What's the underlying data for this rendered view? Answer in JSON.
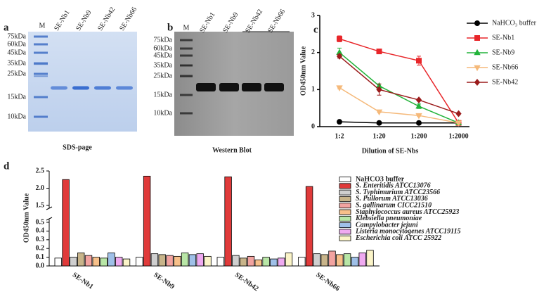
{
  "figure_a": {
    "panel_label": "a",
    "lanes": [
      "M",
      "SE-Nb1",
      "SE-Nb9",
      "SE-Nb42",
      "SE-Nb66"
    ],
    "markers": [
      "75kDa",
      "60kDa",
      "45kDa",
      "35kDa",
      "25kDa",
      "15kDa",
      "10kDa"
    ],
    "caption": "SDS-page"
  },
  "figure_b": {
    "panel_label": "b",
    "lanes": [
      "M",
      "SE-Nb1",
      "SE-Nb9",
      "SE-Nb42",
      "SE-Nb66"
    ],
    "markers": [
      "75kDa",
      "60kDa",
      "45kDa",
      "35kDa",
      "25kDa",
      "15kDa",
      "10kDa"
    ],
    "caption": "Western Blot"
  },
  "chart_data": [
    {
      "type": "line",
      "panel_label": "c",
      "x_label": "Dilution of SE-Nbs",
      "y_label": "OD450nm Value",
      "categories": [
        "1:2",
        "1:20",
        "1:200",
        "1:2000"
      ],
      "ylim": [
        0,
        3
      ],
      "yticks": [
        0,
        1,
        2,
        3
      ],
      "series": [
        {
          "name": "NaHCO₃ buffer",
          "color": "#000000",
          "marker": "circle",
          "values": [
            0.13,
            0.1,
            0.1,
            0.1
          ],
          "errors": [
            0.01,
            0.01,
            0.01,
            0.01
          ]
        },
        {
          "name": "SE-Nb1",
          "color": "#e8262a",
          "marker": "square",
          "values": [
            2.37,
            2.03,
            1.78,
            0.1
          ],
          "errors": [
            0.08,
            0.04,
            0.12,
            0.02
          ]
        },
        {
          "name": "SE-Nb9",
          "color": "#22b33a",
          "marker": "triangle",
          "values": [
            2.0,
            1.1,
            0.55,
            0.1
          ],
          "errors": [
            0.12,
            0.05,
            0.06,
            0.02
          ]
        },
        {
          "name": "SE-Nb66",
          "color": "#f5b97a",
          "marker": "triangle-down",
          "values": [
            1.05,
            0.4,
            0.3,
            0.1
          ],
          "errors": [
            0.03,
            0.02,
            0.02,
            0.02
          ]
        },
        {
          "name": "SE-Nb42",
          "color": "#9b1c1c",
          "marker": "diamond",
          "values": [
            1.9,
            1.0,
            0.72,
            0.35
          ],
          "errors": [
            0.05,
            0.15,
            0.03,
            0.02
          ]
        }
      ]
    },
    {
      "type": "bar",
      "panel_label": "d",
      "y_label": "OD450nm Value",
      "categories": [
        "SE-Nb1",
        "SE-Nb9",
        "SE-Nb42",
        "SE-Nb66"
      ],
      "ylim": [
        0,
        2.5
      ],
      "axis_break": [
        0.5,
        1.5
      ],
      "yticks": [
        {
          "value": 0,
          "label": "0.0"
        },
        0.1,
        0.2,
        0.3,
        0.4,
        0.5,
        1.5,
        {
          "value": 2,
          "label": "2.0"
        },
        2.5
      ],
      "series": [
        {
          "name": "NaHCO3 buffer",
          "color": "#ffffff",
          "values": [
            0.09,
            0.1,
            0.1,
            0.1
          ]
        },
        {
          "name": "S. Enteritidis ATCC13076",
          "color": "#e03a3a",
          "values": [
            2.25,
            2.35,
            2.33,
            2.05
          ]
        },
        {
          "name": "S. Typhimurium ATCC23566",
          "color": "#cfcfcf",
          "values": [
            0.1,
            0.14,
            0.12,
            0.14
          ]
        },
        {
          "name": "S. Pullorum ATCC13036",
          "color": "#c8b48a",
          "values": [
            0.15,
            0.13,
            0.09,
            0.13
          ]
        },
        {
          "name": "S. gallinarum CICC21510",
          "color": "#f2a3a0",
          "values": [
            0.12,
            0.12,
            0.11,
            0.17
          ]
        },
        {
          "name": "Staphylococcus aureus ATCC25923",
          "color": "#f7c08a",
          "values": [
            0.1,
            0.11,
            0.07,
            0.13
          ]
        },
        {
          "name": "Klebsiella pneumoniae",
          "color": "#b8e6a6",
          "values": [
            0.09,
            0.15,
            0.1,
            0.14
          ]
        },
        {
          "name": "Campylobacter jejuni",
          "color": "#9fc0e8",
          "values": [
            0.15,
            0.13,
            0.08,
            0.1
          ]
        },
        {
          "name": "Listeria monocytogenes ATCC19115",
          "color": "#efaaf0",
          "values": [
            0.1,
            0.14,
            0.09,
            0.15
          ]
        },
        {
          "name": "Escherichia coli ATCC 25922",
          "color": "#fbf4c8",
          "values": [
            0.08,
            0.11,
            0.15,
            0.18
          ]
        }
      ]
    }
  ]
}
